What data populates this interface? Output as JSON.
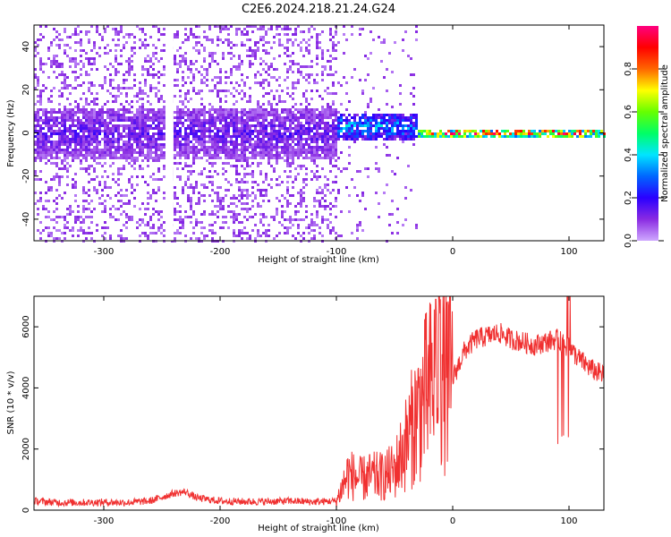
{
  "chart_data": [
    {
      "type": "heatmap",
      "title": "C2E6.2024.218.21.24.G24",
      "xlabel": "Height of straight line (km)",
      "ylabel": "Frequency (Hz)",
      "xlim": [
        -360,
        130
      ],
      "ylim": [
        -50,
        50
      ],
      "xticks": [
        -300,
        -200,
        -100,
        0,
        100
      ],
      "yticks": [
        -40,
        -20,
        0,
        20,
        40
      ],
      "colorbar": {
        "label": "Normalized spectral amplitude",
        "range": [
          0.0,
          1.0
        ],
        "ticks": [
          0.0,
          0.2,
          0.4,
          0.6,
          0.8
        ],
        "colormap": [
          "#cfa8ff",
          "#8a2be2",
          "#2a00ff",
          "#0066ff",
          "#00e5ff",
          "#00ff66",
          "#66ff00",
          "#ffff00",
          "#ff6600",
          "#ff0000",
          "#ff0080"
        ]
      },
      "bands": [
        {
          "x_range": [
            -360,
            -100
          ],
          "center_hz": 0,
          "half_width_hz": 12,
          "amplitude": 0.15
        },
        {
          "x_range": [
            -100,
            -30
          ],
          "center_hz": 3,
          "half_width_hz": 6,
          "amplitude": 0.35
        },
        {
          "x_range": [
            -30,
            130
          ],
          "center_hz": 0,
          "half_width_hz": 2,
          "amplitude": 0.9
        }
      ],
      "grid": false
    },
    {
      "type": "line",
      "xlabel": "Height of straight line (km)",
      "ylabel": "SNR (10 * v/v)",
      "xlim": [
        -360,
        130
      ],
      "ylim": [
        0,
        7000
      ],
      "xticks": [
        -300,
        -200,
        -100,
        0,
        100
      ],
      "yticks": [
        0,
        2000,
        4000,
        6000
      ],
      "color": "#f03030",
      "series": [
        {
          "x": [
            -360,
            -340,
            -320,
            -300,
            -280,
            -260,
            -240,
            -230,
            -220,
            -200,
            -180,
            -160,
            -140,
            -120,
            -100,
            -90,
            -80,
            -70,
            -60,
            -50,
            -40,
            -30,
            -20,
            -10,
            0,
            10,
            20,
            30,
            40,
            50,
            60,
            70,
            80,
            90,
            100,
            110,
            120,
            130
          ],
          "values": [
            300,
            250,
            250,
            260,
            250,
            300,
            550,
            600,
            400,
            300,
            280,
            280,
            300,
            270,
            300,
            1200,
            1000,
            1100,
            1100,
            1300,
            2200,
            3200,
            4000,
            4500,
            4300,
            5200,
            5600,
            5700,
            5800,
            5600,
            5500,
            5400,
            5500,
            5600,
            5300,
            4900,
            4600,
            4400
          ]
        }
      ],
      "grid": false
    }
  ]
}
